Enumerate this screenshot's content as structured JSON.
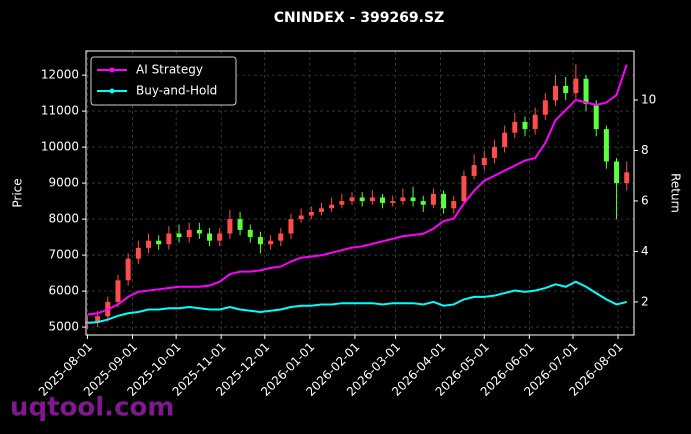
{
  "chart_data": {
    "type": "candlestick",
    "title": "CNINDEX - 399269.SZ",
    "ylabel": "Price",
    "y2label": "Return",
    "watermark": "uqtool.com",
    "x": [
      "2025-08-01",
      "2025-08-08",
      "2025-08-15",
      "2025-08-22",
      "2025-08-29",
      "2025-09-05",
      "2025-09-12",
      "2025-09-19",
      "2025-09-26",
      "2025-10-03",
      "2025-10-10",
      "2025-10-17",
      "2025-10-24",
      "2025-10-31",
      "2025-11-07",
      "2025-11-14",
      "2025-11-21",
      "2025-11-28",
      "2025-12-05",
      "2025-12-12",
      "2025-12-19",
      "2025-12-26",
      "2026-01-02",
      "2026-01-09",
      "2026-01-16",
      "2026-01-23",
      "2026-01-30",
      "2026-02-06",
      "2026-02-13",
      "2026-02-20",
      "2026-02-27",
      "2026-03-06",
      "2026-03-13",
      "2026-03-20",
      "2026-03-27",
      "2026-04-03",
      "2026-04-10",
      "2026-04-17",
      "2026-04-24",
      "2026-05-01",
      "2026-05-08",
      "2026-05-15",
      "2026-05-22",
      "2026-05-29",
      "2026-06-05",
      "2026-06-12",
      "2026-06-19",
      "2026-06-26",
      "2026-07-03",
      "2026-07-10",
      "2026-07-17",
      "2026-07-24",
      "2026-07-31",
      "2026-08-07"
    ],
    "open": [
      5100,
      5150,
      5300,
      5700,
      6300,
      6900,
      7200,
      7400,
      7300,
      7600,
      7500,
      7700,
      7600,
      7400,
      7600,
      8000,
      7700,
      7500,
      7300,
      7400,
      7600,
      8000,
      8100,
      8200,
      8300,
      8400,
      8500,
      8600,
      8500,
      8600,
      8450,
      8500,
      8600,
      8500,
      8400,
      8700,
      8300,
      8500,
      9200,
      9500,
      9700,
      10000,
      10400,
      10700,
      10500,
      10900,
      11300,
      11700,
      11500,
      11900,
      11200,
      10500,
      9600,
      9000
    ],
    "high": [
      5300,
      5450,
      5850,
      6450,
      7050,
      7400,
      7600,
      7550,
      7800,
      7850,
      7900,
      7900,
      7750,
      7750,
      8250,
      8200,
      7850,
      7650,
      7550,
      7750,
      8150,
      8300,
      8350,
      8450,
      8600,
      8700,
      8750,
      8750,
      8800,
      8700,
      8650,
      8850,
      8900,
      8650,
      8850,
      8800,
      8650,
      9350,
      9800,
      9900,
      10200,
      10600,
      10950,
      10850,
      11100,
      11500,
      12000,
      11950,
      12300,
      12000,
      11300,
      10600,
      9700,
      9600
    ],
    "low": [
      4950,
      5000,
      5150,
      5550,
      6150,
      6750,
      7050,
      7150,
      7150,
      7350,
      7350,
      7450,
      7250,
      7250,
      7450,
      7550,
      7350,
      7050,
      7150,
      7250,
      7450,
      7900,
      8000,
      8100,
      8200,
      8300,
      8400,
      8350,
      8400,
      8300,
      8350,
      8400,
      8350,
      8200,
      8300,
      8150,
      8150,
      8400,
      9100,
      9350,
      9550,
      9850,
      10250,
      10300,
      10350,
      10750,
      11150,
      11300,
      11350,
      11000,
      10300,
      9400,
      8000,
      8800
    ],
    "close": [
      5150,
      5300,
      5700,
      6300,
      6900,
      7200,
      7400,
      7300,
      7600,
      7500,
      7700,
      7600,
      7400,
      7600,
      8000,
      7700,
      7500,
      7300,
      7400,
      7600,
      8000,
      8100,
      8200,
      8300,
      8400,
      8500,
      8600,
      8500,
      8600,
      8450,
      8500,
      8600,
      8500,
      8400,
      8700,
      8300,
      8500,
      9200,
      9500,
      9700,
      10000,
      10400,
      10700,
      10500,
      10900,
      11300,
      11700,
      11500,
      11900,
      11200,
      10500,
      9600,
      9000,
      9300
    ],
    "up_color": "#ff4d4d",
    "down_color": "#5cff3c",
    "series": [
      {
        "name": "AI Strategy",
        "color": "#ff00ff",
        "axis": "y2",
        "values": [
          1.5,
          1.55,
          1.7,
          1.9,
          2.2,
          2.4,
          2.45,
          2.5,
          2.55,
          2.6,
          2.6,
          2.6,
          2.65,
          2.8,
          3.1,
          3.2,
          3.2,
          3.25,
          3.35,
          3.4,
          3.6,
          3.75,
          3.8,
          3.85,
          3.95,
          4.05,
          4.15,
          4.2,
          4.3,
          4.4,
          4.5,
          4.6,
          4.65,
          4.7,
          4.9,
          5.2,
          5.3,
          5.9,
          6.4,
          6.8,
          7.0,
          7.2,
          7.4,
          7.6,
          7.7,
          8.3,
          9.2,
          9.6,
          10.0,
          9.9,
          9.8,
          9.9,
          10.2,
          11.4
        ]
      },
      {
        "name": "Buy-and-Hold",
        "color": "#00ffff",
        "axis": "y2",
        "values": [
          1.17,
          1.2,
          1.3,
          1.45,
          1.55,
          1.6,
          1.7,
          1.7,
          1.75,
          1.75,
          1.8,
          1.75,
          1.7,
          1.7,
          1.8,
          1.7,
          1.65,
          1.6,
          1.65,
          1.7,
          1.8,
          1.85,
          1.85,
          1.9,
          1.9,
          1.95,
          1.95,
          1.95,
          1.95,
          1.9,
          1.95,
          1.95,
          1.95,
          1.9,
          2.0,
          1.85,
          1.9,
          2.1,
          2.2,
          2.2,
          2.25,
          2.35,
          2.45,
          2.4,
          2.45,
          2.55,
          2.7,
          2.6,
          2.8,
          2.6,
          2.35,
          2.1,
          1.9,
          2.0
        ]
      }
    ],
    "xlim": [
      "2025-07-31",
      "2026-08-12"
    ],
    "xticks": [
      "2025-08-01",
      "2025-09-01",
      "2025-10-01",
      "2025-11-01",
      "2025-12-01",
      "2026-01-01",
      "2026-02-01",
      "2026-03-01",
      "2026-04-01",
      "2026-05-01",
      "2026-06-01",
      "2026-07-01",
      "2026-08-01"
    ],
    "ylim": [
      4780,
      12670
    ],
    "yticks": [
      5000,
      6000,
      7000,
      8000,
      9000,
      10000,
      11000,
      12000
    ],
    "y2lim": [
      0.69,
      11.94
    ],
    "y2ticks": [
      2,
      4,
      6,
      8,
      10
    ],
    "grid": true,
    "legend": "upper left"
  }
}
